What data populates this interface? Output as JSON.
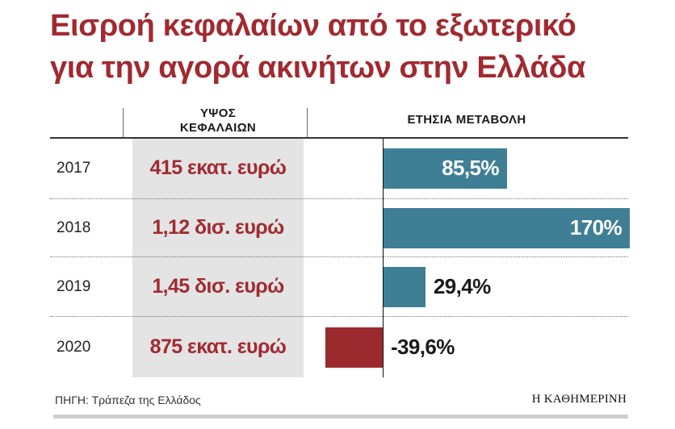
{
  "title": {
    "line1": "Εισροή κεφαλαίων από το εξωτερικό",
    "line2": "για την αγορά ακινήτων στην Ελλάδα"
  },
  "headers": {
    "amount_line1": "ΥΨΟΣ",
    "amount_line2": "ΚΕΦΑΛΑΙΩΝ",
    "change": "ΕΤΗΣΙΑ ΜΕΤΑΒΟΛΗ"
  },
  "colors": {
    "title": "#a12a30",
    "positive_bar": "#3f7f96",
    "negative_bar": "#9b2a2f"
  },
  "chart_data": {
    "type": "bar",
    "orientation": "horizontal",
    "categories": [
      "2017",
      "2018",
      "2019",
      "2020"
    ],
    "amounts": [
      "415 εκατ. ευρώ",
      "1,12 δισ. ευρώ",
      "1,45 δισ. ευρώ",
      "875 εκατ. ευρώ"
    ],
    "values": [
      85.5,
      170,
      29.4,
      -39.6
    ],
    "value_labels": [
      "85,5%",
      "170%",
      "29,4%",
      "-39,6%"
    ],
    "xlim": [
      -39.6,
      170
    ],
    "grid": false
  },
  "footer": {
    "source": "ΠΗΓΗ: Τράπεζα της Ελλάδος",
    "brand": "Η ΚΑΘΗΜΕΡΙΝΗ"
  }
}
